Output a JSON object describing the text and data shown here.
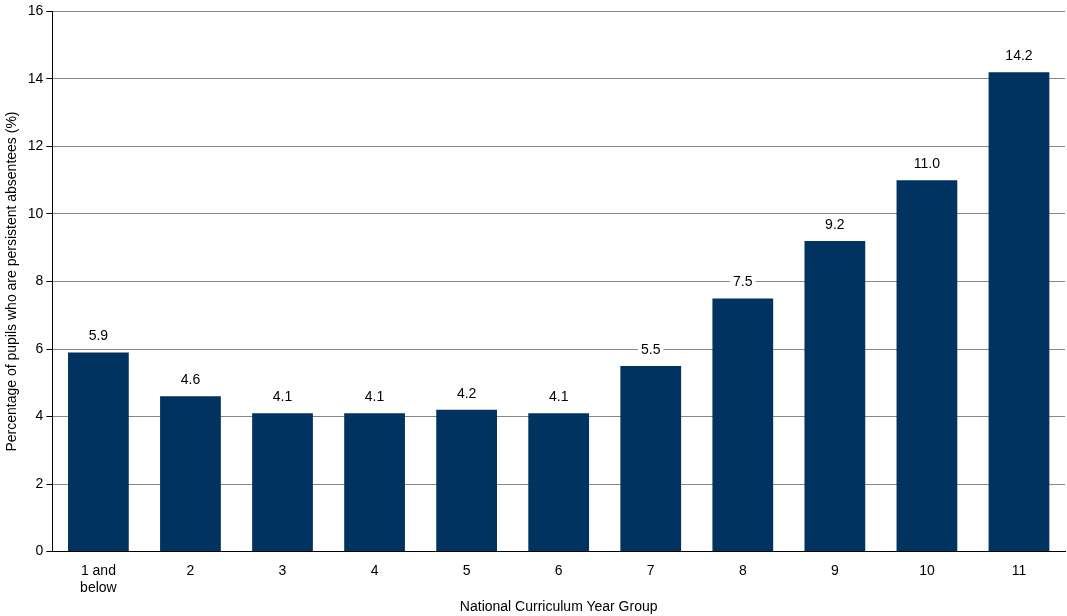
{
  "chart_data": {
    "type": "bar",
    "xlabel": "National Curriculum Year Group",
    "ylabel": "Percentage of pupils who are persistent absentees (%)",
    "categories": [
      "1 and below",
      "2",
      "3",
      "4",
      "5",
      "6",
      "7",
      "8",
      "9",
      "10",
      "11"
    ],
    "values": [
      5.9,
      4.6,
      4.1,
      4.1,
      4.2,
      4.1,
      5.5,
      7.5,
      9.2,
      11.0,
      14.2
    ],
    "value_labels": [
      "5.9",
      "4.6",
      "4.1",
      "4.1",
      "4.2",
      "4.1",
      "5.5",
      "7.5",
      "9.2",
      "11.0",
      "14.2"
    ],
    "color": "#00335f",
    "ylim": [
      0,
      16
    ],
    "yticks": [
      0,
      2,
      4,
      6,
      8,
      10,
      12,
      14,
      16
    ],
    "grid": "y",
    "legend": false
  }
}
